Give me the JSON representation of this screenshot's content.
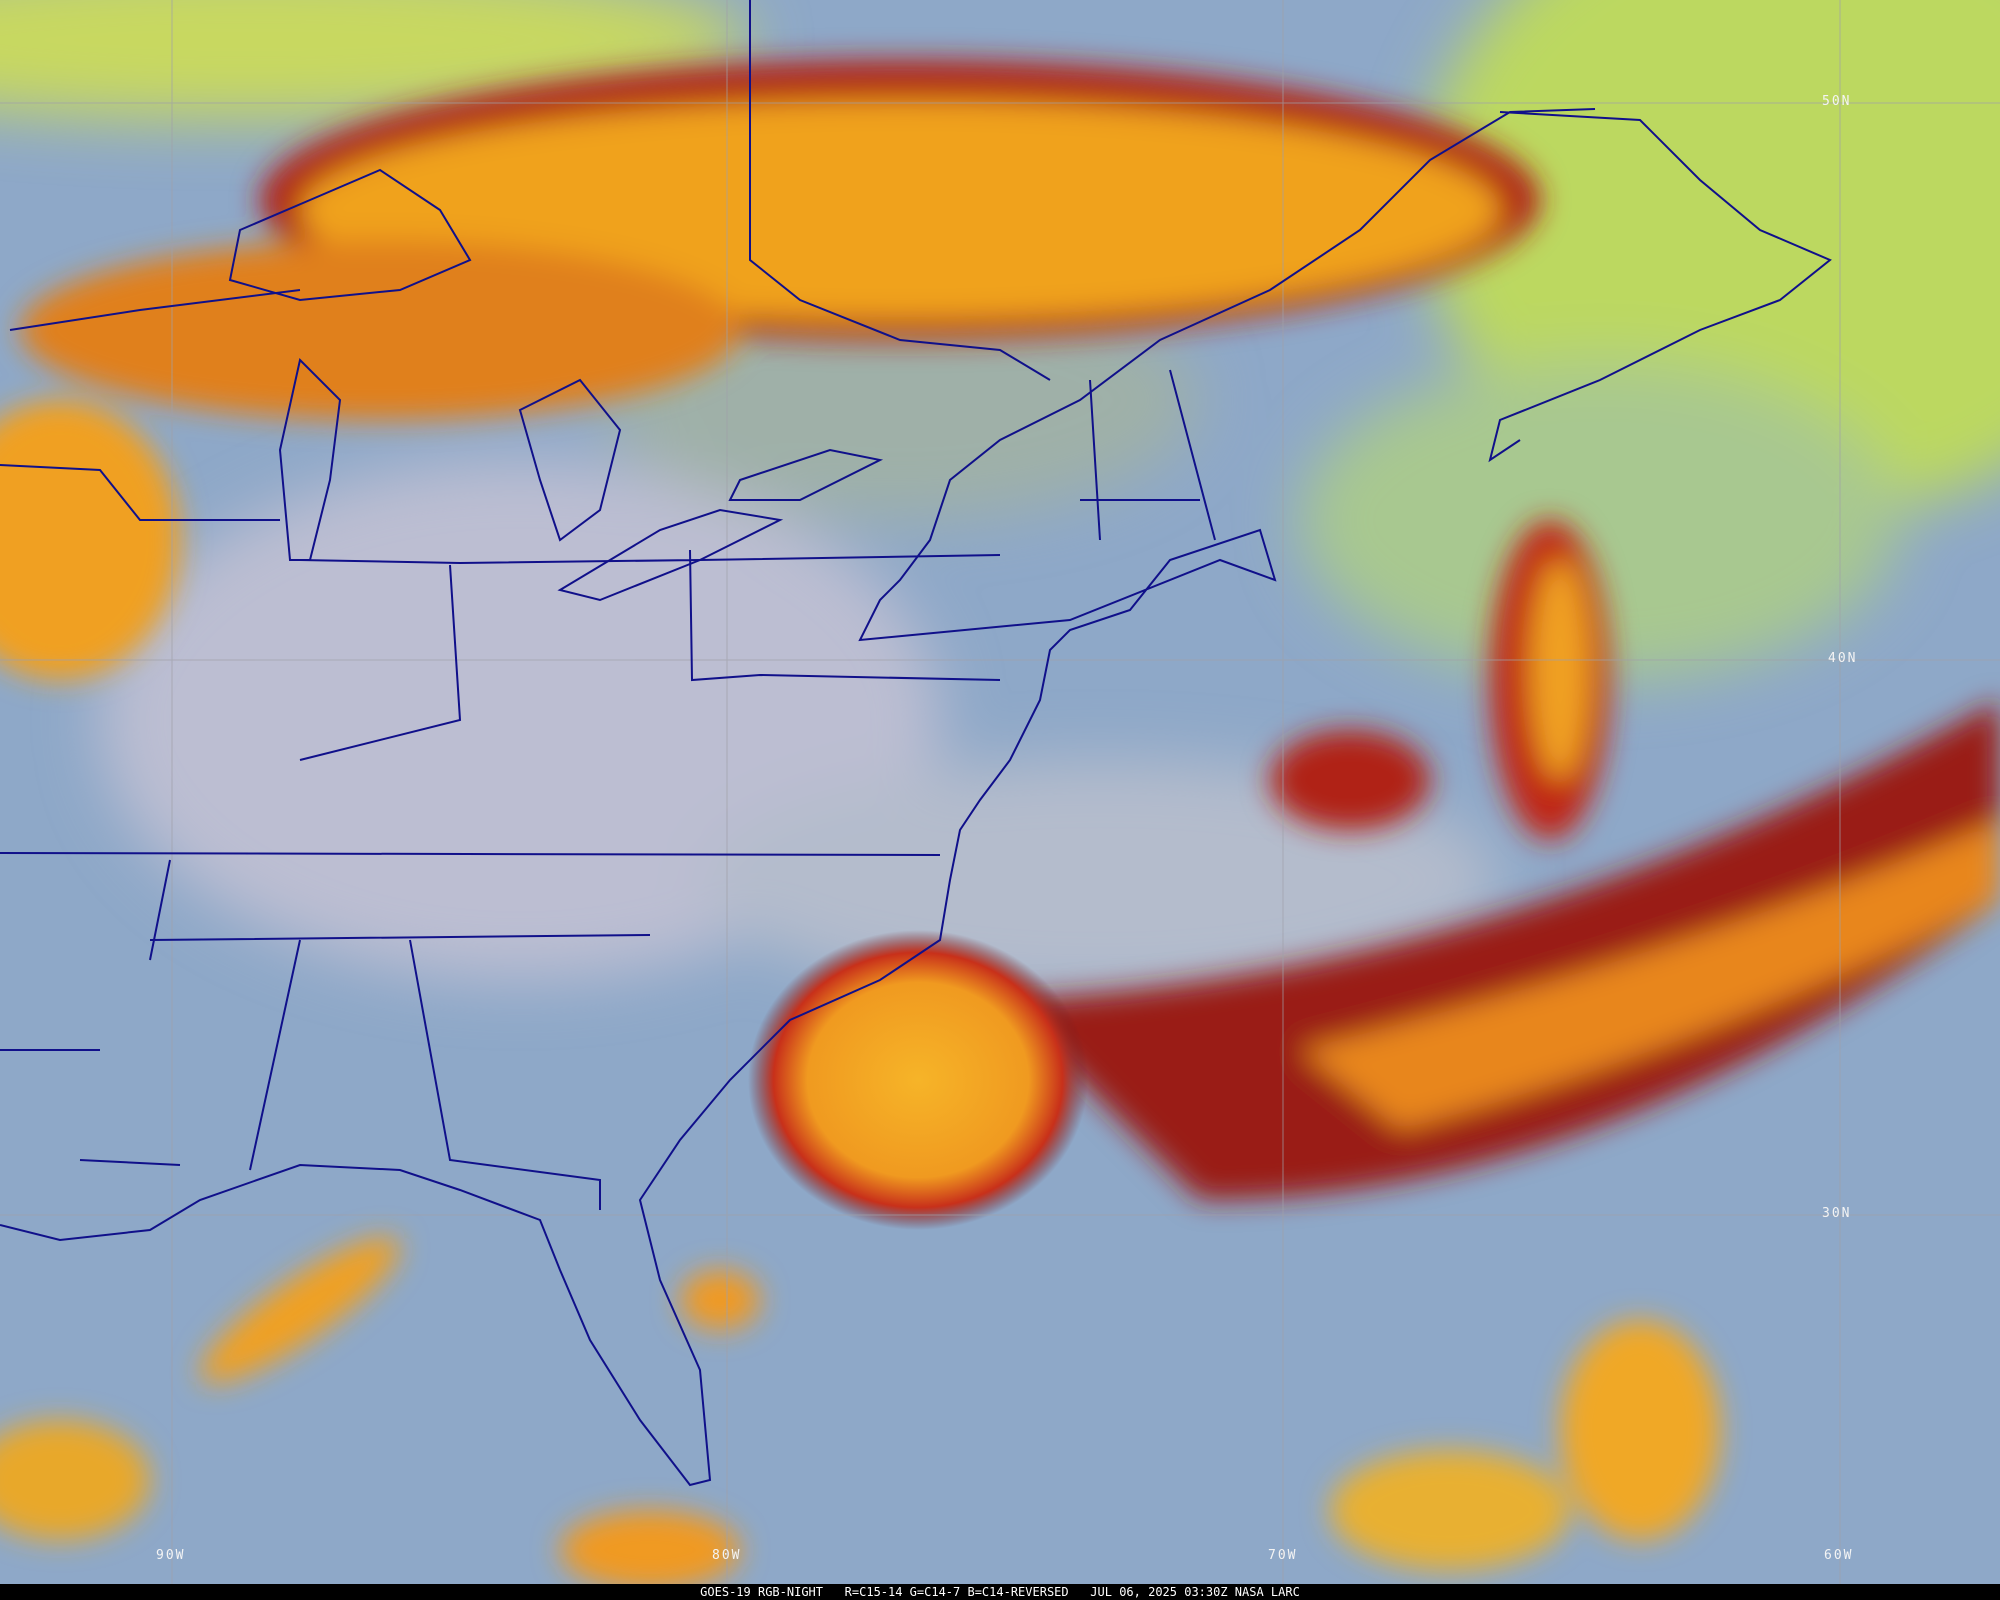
{
  "caption": "GOES-19 RGB-NIGHT   R=C15-14 G=C14-7 B=C14-REVERSED   JUL 06, 2025 03:30Z NASA LARC",
  "lat_labels": [
    "50N",
    "40N",
    "30N"
  ],
  "lon_labels": [
    "90W",
    "80W",
    "70W",
    "60W"
  ],
  "colors": {
    "ocean": "#8ea8c8",
    "low_cloud": "#b9bdd2",
    "high_cloud": "#f2a51e",
    "cloud_edge": "#b51c10",
    "dust_green": "#bcd860",
    "borders": "#10108a"
  }
}
